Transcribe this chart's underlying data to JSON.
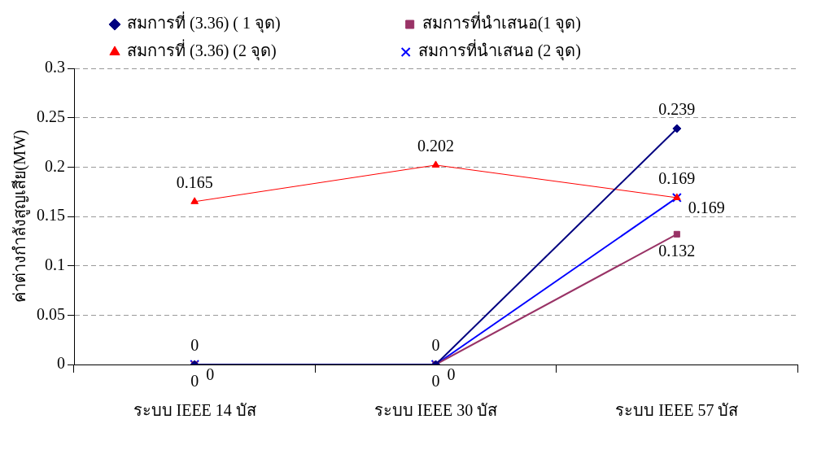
{
  "chart_data": {
    "type": "line",
    "ylabel": "ค่าต่างกำลังสูญเสีย(MW)",
    "categories": [
      "ระบบ IEEE 14 บัส",
      "ระบบ IEEE 30 บัส",
      "ระบบ IEEE 57 บัส"
    ],
    "series": [
      {
        "name": "สมการที่ (3.36) ( 1 จุด)",
        "color": "#000080",
        "marker": "diamond",
        "values": [
          0,
          0,
          0.239
        ]
      },
      {
        "name": "สมการที่นำเสนอ(1 จุด)",
        "color": "#993366",
        "marker": "square",
        "values": [
          0,
          0,
          0.132
        ]
      },
      {
        "name": "สมการที่ (3.36) (2 จุด)",
        "color": "#ff0000",
        "marker": "triangle",
        "values": [
          0.165,
          0.202,
          0.169
        ]
      },
      {
        "name": "สมการที่นำเสนอ (2 จุด)",
        "color": "#0000ff",
        "marker": "cross",
        "values": [
          0,
          0,
          0.169
        ]
      }
    ],
    "ylim": [
      0,
      0.3
    ],
    "yticks": [
      0,
      0.05,
      0.1,
      0.15,
      0.2,
      0.25,
      0.3
    ],
    "grid": "y",
    "legend": "top",
    "data_labels": true
  }
}
